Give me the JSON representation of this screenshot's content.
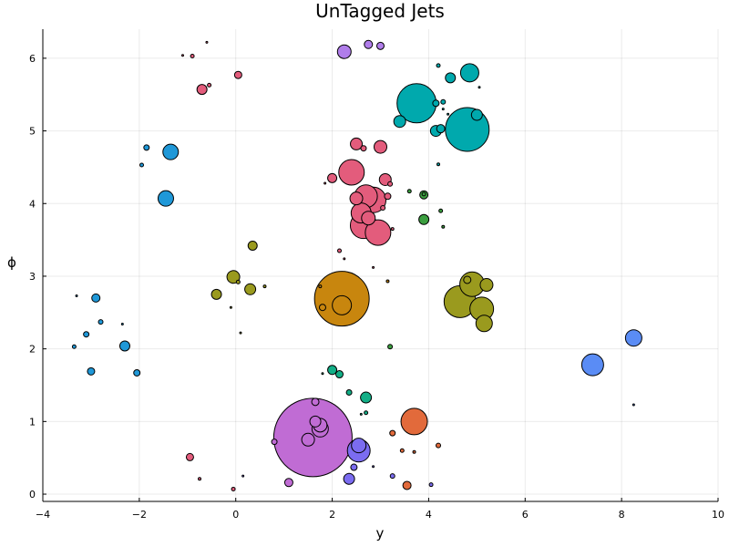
{
  "chart_data": {
    "type": "scatter",
    "title": "UnTagged Jets",
    "xlabel": "y",
    "ylabel": "ϕ",
    "xlim": [
      -4,
      10
    ],
    "ylim": [
      -0.1,
      6.4
    ],
    "xticks": [
      -4,
      -2,
      0,
      2,
      4,
      6,
      8,
      10
    ],
    "yticks": [
      0,
      1,
      2,
      3,
      4,
      5,
      6
    ],
    "xtick_labels": [
      "−4",
      "−2",
      "0",
      "2",
      "4",
      "6",
      "8",
      "10"
    ],
    "ytick_labels": [
      "0",
      "1",
      "2",
      "3",
      "4",
      "5",
      "6"
    ],
    "grid": true,
    "legend": "none",
    "marker_size_meaning": "jet energy (relative)",
    "series": [
      {
        "color": "#1f98d8",
        "points": [
          [
            -3.3,
            2.73,
            2
          ],
          [
            -2.9,
            2.7,
            9
          ],
          [
            -3.1,
            2.2,
            6
          ],
          [
            -2.8,
            2.37,
            5
          ],
          [
            -3.35,
            2.03,
            4
          ],
          [
            -3.0,
            1.69,
            8
          ],
          [
            -2.35,
            2.34,
            2
          ],
          [
            -2.3,
            2.04,
            11
          ],
          [
            -2.05,
            1.67,
            7
          ],
          [
            -1.95,
            4.53,
            4
          ],
          [
            -1.85,
            4.77,
            6
          ],
          [
            -1.35,
            4.71,
            17
          ],
          [
            -1.45,
            4.07,
            17
          ]
        ]
      },
      {
        "color": "#b07dea",
        "points": [
          [
            2.25,
            6.09,
            15
          ],
          [
            2.75,
            6.19,
            9
          ],
          [
            3.0,
            6.17,
            8
          ]
        ]
      },
      {
        "color": "#e35c7c",
        "points": [
          [
            -1.1,
            6.04,
            2
          ],
          [
            -0.9,
            6.03,
            4
          ],
          [
            -0.6,
            6.22,
            2
          ],
          [
            -0.55,
            5.63,
            4
          ],
          [
            -0.7,
            5.57,
            11
          ],
          [
            0.05,
            5.77,
            8
          ],
          [
            2.5,
            4.82,
            13
          ],
          [
            2.65,
            4.76,
            6
          ],
          [
            3.0,
            4.78,
            14
          ],
          [
            2.4,
            4.43,
            28
          ],
          [
            2.0,
            4.35,
            10
          ],
          [
            1.85,
            4.28,
            2
          ],
          [
            3.1,
            4.33,
            13
          ],
          [
            3.2,
            4.27,
            5
          ],
          [
            2.5,
            4.07,
            14
          ],
          [
            2.7,
            4.1,
            25
          ],
          [
            2.85,
            4.05,
            28
          ],
          [
            3.15,
            4.1,
            7
          ],
          [
            3.05,
            3.94,
            5
          ],
          [
            2.75,
            3.8,
            15
          ],
          [
            2.6,
            3.87,
            22
          ],
          [
            2.65,
            3.7,
            29
          ],
          [
            2.95,
            3.6,
            28
          ],
          [
            3.25,
            3.65,
            3
          ],
          [
            2.15,
            3.35,
            4
          ],
          [
            2.25,
            3.24,
            2
          ],
          [
            2.85,
            3.12,
            2
          ],
          [
            -0.95,
            0.51,
            8
          ],
          [
            -0.75,
            0.21,
            3
          ],
          [
            -0.05,
            0.07,
            4
          ]
        ]
      },
      {
        "color": "#00a9ad",
        "points": [
          [
            4.2,
            5.9,
            4
          ],
          [
            4.45,
            5.73,
            11
          ],
          [
            4.85,
            5.8,
            20
          ],
          [
            5.05,
            5.6,
            2
          ],
          [
            3.75,
            5.38,
            43
          ],
          [
            4.15,
            5.38,
            7
          ],
          [
            4.3,
            5.4,
            5
          ],
          [
            4.3,
            5.3,
            2
          ],
          [
            4.4,
            5.23,
            2
          ],
          [
            5.0,
            5.22,
            12
          ],
          [
            3.4,
            5.13,
            13
          ],
          [
            4.15,
            5.0,
            12
          ],
          [
            4.25,
            5.03,
            9
          ],
          [
            4.8,
            5.02,
            48
          ],
          [
            4.2,
            4.54,
            3
          ]
        ]
      },
      {
        "color": "#3b9e3f",
        "points": [
          [
            3.6,
            4.17,
            4
          ],
          [
            3.9,
            4.12,
            9
          ],
          [
            3.9,
            4.13,
            4
          ],
          [
            4.25,
            3.9,
            4
          ],
          [
            3.9,
            3.78,
            11
          ],
          [
            4.3,
            3.68,
            3
          ],
          [
            3.2,
            2.03,
            5
          ]
        ]
      },
      {
        "color": "#9a9a1e",
        "points": [
          [
            0.35,
            3.42,
            10
          ],
          [
            -0.05,
            2.99,
            14
          ],
          [
            0.05,
            2.92,
            4
          ],
          [
            0.3,
            2.82,
            12
          ],
          [
            0.6,
            2.86,
            3
          ],
          [
            -0.4,
            2.75,
            11
          ],
          [
            -0.1,
            2.57,
            2
          ],
          [
            0.1,
            2.22,
            2
          ],
          [
            4.65,
            2.65,
            35
          ],
          [
            4.8,
            2.95,
            8
          ],
          [
            4.9,
            2.89,
            27
          ],
          [
            5.1,
            2.55,
            26
          ],
          [
            5.2,
            2.88,
            14
          ],
          [
            5.15,
            2.35,
            18
          ]
        ]
      },
      {
        "color": "#c8860e",
        "points": [
          [
            2.2,
            2.69,
            60
          ],
          [
            2.2,
            2.6,
            21
          ],
          [
            1.8,
            2.57,
            7
          ],
          [
            1.75,
            2.86,
            3
          ],
          [
            3.15,
            2.93,
            3
          ]
        ]
      },
      {
        "color": "#5a8cf5",
        "points": [
          [
            7.4,
            1.78,
            24
          ],
          [
            8.25,
            2.15,
            18
          ],
          [
            8.25,
            1.23,
            2
          ]
        ]
      },
      {
        "color": "#12ae86",
        "points": [
          [
            2.0,
            1.71,
            10
          ],
          [
            2.15,
            1.65,
            8
          ],
          [
            1.8,
            1.66,
            2
          ],
          [
            2.35,
            1.4,
            6
          ],
          [
            2.7,
            1.33,
            12
          ],
          [
            2.7,
            1.12,
            4
          ],
          [
            2.6,
            1.1,
            2
          ]
        ]
      },
      {
        "color": "#e26a3b",
        "points": [
          [
            3.7,
            1.0,
            29
          ],
          [
            3.25,
            0.84,
            6
          ],
          [
            4.2,
            0.67,
            5
          ],
          [
            3.45,
            0.6,
            4
          ],
          [
            3.7,
            0.58,
            3
          ],
          [
            3.55,
            0.12,
            9
          ]
        ]
      },
      {
        "color": "#c06cd4",
        "points": [
          [
            1.6,
            0.78,
            86
          ],
          [
            1.65,
            1.27,
            8
          ],
          [
            1.65,
            1.0,
            12
          ],
          [
            1.75,
            0.95,
            15
          ],
          [
            1.75,
            0.9,
            18
          ],
          [
            1.5,
            0.75,
            14
          ],
          [
            0.8,
            0.72,
            6
          ],
          [
            1.1,
            0.16,
            9
          ]
        ]
      },
      {
        "color": "#7b6cf0",
        "points": [
          [
            2.55,
            0.6,
            25
          ],
          [
            2.55,
            0.67,
            16
          ],
          [
            2.85,
            0.38,
            2
          ],
          [
            2.35,
            0.21,
            12
          ],
          [
            2.45,
            0.37,
            7
          ],
          [
            3.25,
            0.25,
            5
          ],
          [
            4.05,
            0.13,
            4
          ],
          [
            0.15,
            0.25,
            2
          ]
        ]
      }
    ]
  }
}
